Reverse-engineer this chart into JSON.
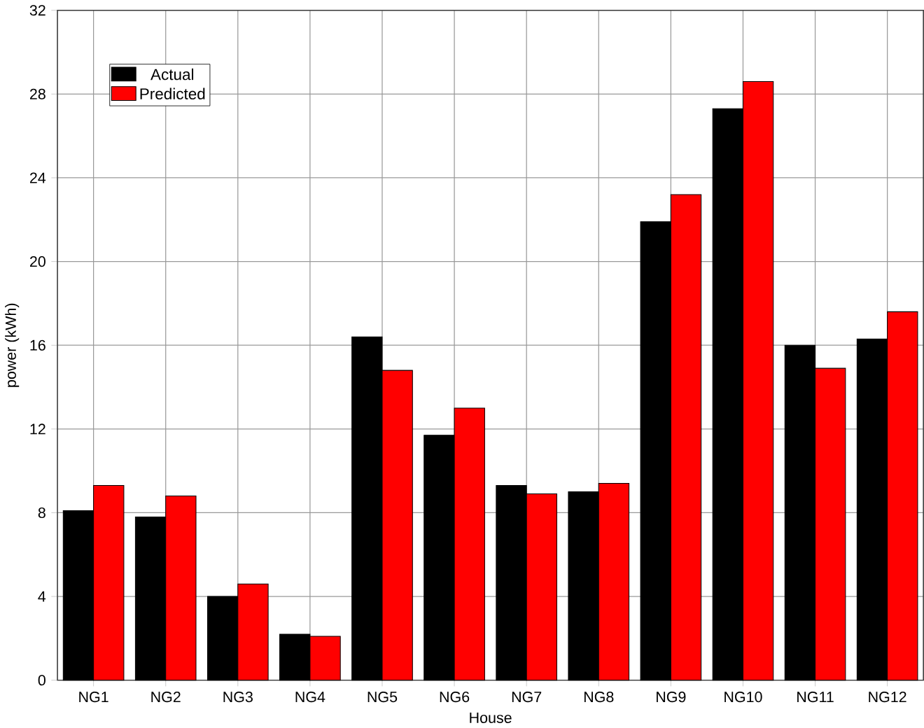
{
  "chart_data": {
    "type": "bar",
    "xlabel": "House",
    "ylabel": "power (kWh)",
    "categories": [
      "NG1",
      "NG2",
      "NG3",
      "NG4",
      "NG5",
      "NG6",
      "NG7",
      "NG8",
      "NG9",
      "NG10",
      "NG11",
      "NG12"
    ],
    "series": [
      {
        "name": "Actual",
        "color": "#000000",
        "values": [
          8.1,
          7.8,
          4.0,
          2.2,
          16.4,
          11.7,
          9.3,
          9.0,
          21.9,
          27.3,
          16.0,
          16.3
        ]
      },
      {
        "name": "Predicted",
        "color": "#ff0000",
        "values": [
          9.3,
          8.8,
          4.6,
          2.1,
          14.8,
          13.0,
          8.9,
          9.4,
          23.2,
          28.6,
          14.9,
          17.6
        ]
      }
    ],
    "ylim": [
      0,
      32
    ],
    "yticks": [
      0,
      4,
      8,
      12,
      16,
      20,
      24,
      28,
      32
    ],
    "grid": true,
    "legend": "top left"
  }
}
